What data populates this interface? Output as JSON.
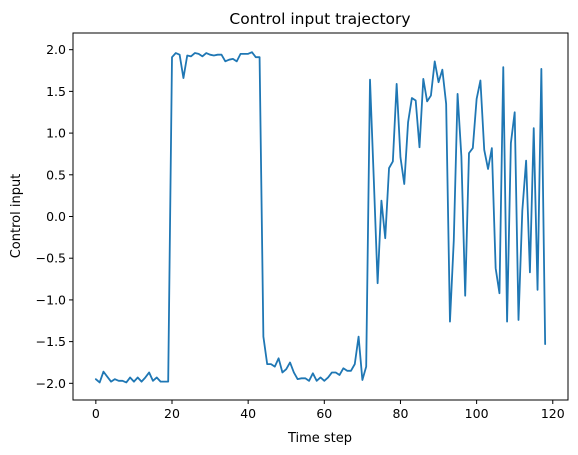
{
  "chart_data": {
    "type": "line",
    "title": "Control input trajectory",
    "xlabel": "Time step",
    "ylabel": "Control input",
    "xlim": [
      -6,
      124
    ],
    "ylim": [
      -2.2,
      2.2
    ],
    "xticks": [
      0,
      20,
      40,
      60,
      80,
      100,
      120
    ],
    "yticks": [
      -2.0,
      -1.5,
      -1.0,
      -0.5,
      0.0,
      0.5,
      1.0,
      1.5,
      2.0
    ],
    "xtick_labels": [
      "0",
      "20",
      "40",
      "60",
      "80",
      "100",
      "120"
    ],
    "ytick_labels": [
      "−2.0",
      "−1.5",
      "−1.0",
      "−0.5",
      "0.0",
      "0.5",
      "1.0",
      "1.5",
      "2.0"
    ],
    "grid": false,
    "series": [
      {
        "color": "#1f77b4",
        "x": [
          0,
          1,
          2,
          3,
          4,
          5,
          6,
          7,
          8,
          9,
          10,
          11,
          12,
          13,
          14,
          15,
          16,
          17,
          18,
          19,
          20,
          21,
          22,
          23,
          24,
          25,
          26,
          27,
          28,
          29,
          30,
          31,
          32,
          33,
          34,
          35,
          36,
          37,
          38,
          39,
          40,
          41,
          42,
          43,
          44,
          45,
          46,
          47,
          48,
          49,
          50,
          51,
          52,
          53,
          54,
          55,
          56,
          57,
          58,
          59,
          60,
          61,
          62,
          63,
          64,
          65,
          66,
          67,
          68,
          69,
          70,
          71,
          72,
          73,
          74,
          75,
          76,
          77,
          78,
          79,
          80,
          81,
          82,
          83,
          84,
          85,
          86,
          87,
          88,
          89,
          90,
          91,
          92,
          93,
          94,
          95,
          96,
          97,
          98,
          99,
          100,
          101,
          102,
          103,
          104,
          105,
          106,
          107,
          108,
          109,
          110,
          111,
          112,
          113,
          114,
          115,
          116,
          117,
          118
        ],
        "values": [
          -1.95,
          -1.99,
          -1.86,
          -1.92,
          -1.98,
          -1.95,
          -1.97,
          -1.97,
          -1.99,
          -1.93,
          -1.98,
          -1.93,
          -1.98,
          -1.93,
          -1.87,
          -1.97,
          -1.93,
          -1.98,
          -1.98,
          -1.98,
          1.91,
          1.96,
          1.94,
          1.66,
          1.93,
          1.92,
          1.96,
          1.95,
          1.92,
          1.96,
          1.94,
          1.93,
          1.94,
          1.94,
          1.86,
          1.88,
          1.89,
          1.86,
          1.95,
          1.95,
          1.95,
          1.97,
          1.91,
          1.91,
          -1.44,
          -1.77,
          -1.77,
          -1.8,
          -1.7,
          -1.87,
          -1.83,
          -1.75,
          -1.87,
          -1.95,
          -1.94,
          -1.94,
          -1.97,
          -1.88,
          -1.97,
          -1.93,
          -1.97,
          -1.93,
          -1.87,
          -1.87,
          -1.9,
          -1.82,
          -1.85,
          -1.85,
          -1.77,
          -1.44,
          -1.96,
          -1.8,
          1.64,
          0.44,
          -0.8,
          0.19,
          -0.26,
          0.58,
          0.66,
          1.59,
          0.71,
          0.39,
          1.13,
          1.42,
          1.39,
          0.83,
          1.65,
          1.38,
          1.45,
          1.86,
          1.61,
          1.76,
          1.35,
          -1.26,
          -0.29,
          1.47,
          0.72,
          -0.95,
          0.76,
          0.82,
          1.41,
          1.63,
          0.8,
          0.57,
          0.82,
          -0.62,
          -0.92,
          1.79,
          -1.26,
          0.88,
          1.25,
          -1.24,
          0.07,
          0.67,
          -0.67,
          1.06,
          -0.88,
          1.77,
          -1.53
        ]
      }
    ]
  }
}
